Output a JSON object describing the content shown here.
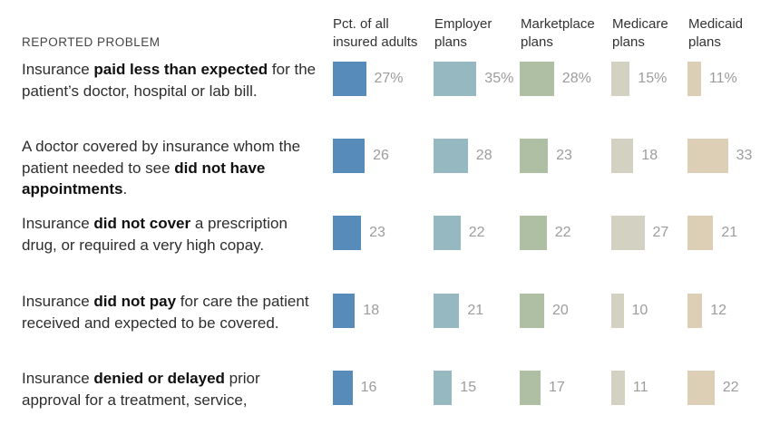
{
  "header": {
    "reported_problem": "REPORTED PROBLEM"
  },
  "columns": [
    {
      "key": "all",
      "label": "Pct. of all insured adults",
      "color": "#578CBA"
    },
    {
      "key": "employer",
      "label": "Employer plans",
      "color": "#96B8C0"
    },
    {
      "key": "marketplace",
      "label": "Marketplace plans",
      "color": "#AFBFA3"
    },
    {
      "key": "medicare",
      "label": "Medicare plans",
      "color": "#D3D2C2"
    },
    {
      "key": "medicaid",
      "label": "Medicaid plans",
      "color": "#DCCFB6"
    }
  ],
  "chart_data": {
    "type": "bar",
    "unit": "percent",
    "value_range": [
      0,
      35
    ],
    "categories": [
      "Pct. of all insured adults",
      "Employer plans",
      "Marketplace plans",
      "Medicare plans",
      "Medicaid plans"
    ],
    "rows": [
      {
        "pre": "Insurance ",
        "bold": "paid less than expected",
        "post": " for the patient’s doctor, hospital or lab bill.",
        "values": [
          27,
          35,
          28,
          15,
          11
        ],
        "value_labels": [
          "27%",
          "35%",
          "28%",
          "15%",
          "11%"
        ]
      },
      {
        "pre": "A doctor covered by insurance whom the patient needed to see ",
        "bold": "did not have appointments",
        "post": ".",
        "values": [
          26,
          28,
          23,
          18,
          33
        ],
        "value_labels": [
          "26",
          "28",
          "23",
          "18",
          "33"
        ]
      },
      {
        "pre": "Insurance ",
        "bold": "did not cover",
        "post": " a prescription drug, or required a very high copay.",
        "values": [
          23,
          22,
          22,
          27,
          21
        ],
        "value_labels": [
          "23",
          "22",
          "22",
          "27",
          "21"
        ]
      },
      {
        "pre": "Insurance ",
        "bold": "did not pay",
        "post": " for care the patient received and expected to be covered.",
        "values": [
          18,
          21,
          20,
          10,
          12
        ],
        "value_labels": [
          "18",
          "21",
          "20",
          "10",
          "12"
        ]
      },
      {
        "pre": "Insurance ",
        "bold": "denied or delayed",
        "post": " prior approval for a treatment, service,",
        "values": [
          16,
          15,
          17,
          11,
          22
        ],
        "value_labels": [
          "16",
          "15",
          "17",
          "11",
          "22"
        ]
      }
    ]
  }
}
